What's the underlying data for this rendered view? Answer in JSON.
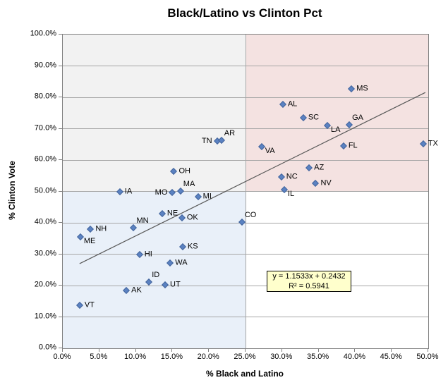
{
  "chart_data": {
    "type": "scatter",
    "title": "Black/Latino vs Clinton Pct",
    "xlabel": "% Black and Latino",
    "ylabel": "% Clinton Vote",
    "xlim": [
      0,
      50
    ],
    "ylim": [
      0,
      100
    ],
    "x_ticks": [
      "0.0%",
      "5.0%",
      "10.0%",
      "15.0%",
      "20.0%",
      "25.0%",
      "30.0%",
      "35.0%",
      "40.0%",
      "45.0%",
      "50.0%"
    ],
    "y_ticks": [
      "0.0%",
      "10.0%",
      "20.0%",
      "30.0%",
      "40.0%",
      "50.0%",
      "60.0%",
      "70.0%",
      "80.0%",
      "90.0%",
      "100.0%"
    ],
    "grid": "horizontal",
    "legend": "none",
    "quadrants": {
      "x_split": 25,
      "y_split": 50
    },
    "points": [
      {
        "label": "VT",
        "x": 2.3,
        "y": 13.6,
        "side": "right"
      },
      {
        "label": "ME",
        "x": 2.4,
        "y": 35.5,
        "side": "below-right"
      },
      {
        "label": "NH",
        "x": 3.8,
        "y": 38.0,
        "side": "right"
      },
      {
        "label": "IA",
        "x": 7.8,
        "y": 49.8,
        "side": "right"
      },
      {
        "label": "AK",
        "x": 8.7,
        "y": 18.4,
        "side": "right"
      },
      {
        "label": "MN",
        "x": 9.7,
        "y": 38.4,
        "side": "above-right"
      },
      {
        "label": "HI",
        "x": 10.5,
        "y": 30.0,
        "side": "right"
      },
      {
        "label": "ID",
        "x": 11.8,
        "y": 21.2,
        "side": "above-right"
      },
      {
        "label": "NE",
        "x": 13.6,
        "y": 42.9,
        "side": "right"
      },
      {
        "label": "UT",
        "x": 14.0,
        "y": 20.3,
        "side": "right"
      },
      {
        "label": "WA",
        "x": 14.7,
        "y": 27.1,
        "side": "right"
      },
      {
        "label": "MO",
        "x": 15.0,
        "y": 49.6,
        "side": "left"
      },
      {
        "label": "OH",
        "x": 15.2,
        "y": 56.5,
        "side": "right"
      },
      {
        "label": "MA",
        "x": 16.1,
        "y": 50.1,
        "side": "above-right"
      },
      {
        "label": "OK",
        "x": 16.3,
        "y": 41.5,
        "side": "right"
      },
      {
        "label": "KS",
        "x": 16.4,
        "y": 32.3,
        "side": "right"
      },
      {
        "label": "MI",
        "x": 18.5,
        "y": 48.3,
        "side": "right"
      },
      {
        "label": "TN",
        "x": 21.1,
        "y": 66.1,
        "side": "left"
      },
      {
        "label": "AR",
        "x": 21.7,
        "y": 66.3,
        "side": "above-right"
      },
      {
        "label": "CO",
        "x": 24.5,
        "y": 40.3,
        "side": "above-right"
      },
      {
        "label": "VA",
        "x": 27.2,
        "y": 64.3,
        "side": "below-right"
      },
      {
        "label": "NC",
        "x": 29.9,
        "y": 54.6,
        "side": "right"
      },
      {
        "label": "AL",
        "x": 30.1,
        "y": 77.8,
        "side": "right"
      },
      {
        "label": "IL",
        "x": 30.3,
        "y": 50.5,
        "side": "below-right"
      },
      {
        "label": "SC",
        "x": 32.9,
        "y": 73.5,
        "side": "right"
      },
      {
        "label": "AZ",
        "x": 33.7,
        "y": 57.6,
        "side": "right"
      },
      {
        "label": "NV",
        "x": 34.6,
        "y": 52.6,
        "side": "right"
      },
      {
        "label": "LA",
        "x": 36.2,
        "y": 71.1,
        "side": "below-right"
      },
      {
        "label": "FL",
        "x": 38.4,
        "y": 64.4,
        "side": "right"
      },
      {
        "label": "GA",
        "x": 39.2,
        "y": 71.3,
        "side": "above-right"
      },
      {
        "label": "MS",
        "x": 39.5,
        "y": 82.6,
        "side": "right"
      },
      {
        "label": "TX",
        "x": 49.3,
        "y": 65.2,
        "side": "right"
      }
    ],
    "trendline": {
      "slope": 1.1533,
      "intercept": 0.2432,
      "x_start": 2.3,
      "x_end": 49.6,
      "equation": "y = 1.1533x + 0.2432",
      "r_squared": "R² = 0.5941"
    },
    "colors": {
      "marker_fill": "#5b82c2",
      "marker_border": "#44659c",
      "quad_gray": "#f2f2f2",
      "quad_pink": "#f4e2e1",
      "quad_blue": "#e9f0f9",
      "gridline": "#a6a6a6",
      "plot_border": "#808080",
      "trendline": "#595959",
      "equation_bg": "#ffffcc",
      "equation_border": "#000000",
      "text": "#000000"
    }
  }
}
